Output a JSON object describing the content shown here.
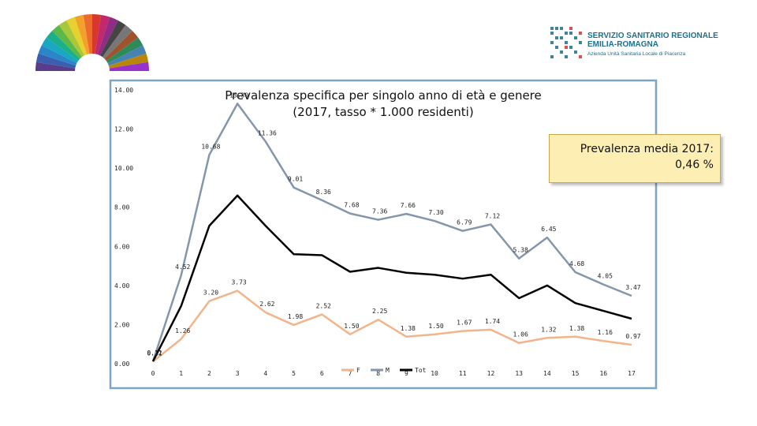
{
  "header": {
    "org_line1": "SERVIZIO SANITARIO REGIONALE",
    "org_line2": "EMILIA-ROMAGNA",
    "org_line3": "Azienda Unità Sanitaria Locale di Piacenza"
  },
  "note": {
    "line1": "Prevalenza media 2017:",
    "line2": "0,46 %"
  },
  "colors": {
    "F": "#f2b48a",
    "M": "#8496ab",
    "Tot": "#000000",
    "frame": "#7da3c8"
  },
  "chart_data": {
    "type": "line",
    "title_line1": "Prevalenza specifica per singolo anno di età e genere",
    "title_line2": "(2017, tasso * 1.000 residenti)",
    "categories": [
      "0",
      "1",
      "2",
      "3",
      "4",
      "5",
      "6",
      "7",
      "8",
      "9",
      "10",
      "11",
      "12",
      "13",
      "14",
      "15",
      "16",
      "17"
    ],
    "ylim": [
      0,
      14
    ],
    "yticks": [
      "0.00",
      "2.00",
      "4.00",
      "6.00",
      "8.00",
      "10.00",
      "12.00",
      "14.00"
    ],
    "series": [
      {
        "name": "F",
        "values": [
          0.11,
          1.26,
          3.2,
          3.73,
          2.62,
          1.98,
          2.52,
          1.5,
          2.25,
          1.38,
          1.5,
          1.67,
          1.74,
          1.06,
          1.32,
          1.38,
          1.16,
          0.97
        ],
        "labels": [
          "0.11",
          "1.26",
          "3.20",
          "3.73",
          "2.62",
          "1.98",
          "2.52",
          "1.50",
          "2.25",
          "1.38",
          "1.50",
          "1.67",
          "1.74",
          "1.06",
          "1.32",
          "1.38",
          "1.16",
          "0.97"
        ]
      },
      {
        "name": "M",
        "values": [
          0.12,
          4.52,
          10.68,
          13.3,
          11.36,
          9.01,
          8.36,
          7.68,
          7.36,
          7.66,
          7.3,
          6.79,
          7.12,
          5.38,
          6.45,
          4.68,
          4.05,
          3.47
        ],
        "labels": [
          "0.12",
          "4.52",
          "10.68",
          "13.30",
          "11.36",
          "9.01",
          "8.36",
          "7.68",
          "7.36",
          "7.66",
          "7.30",
          "6.79",
          "7.12",
          "5.38",
          "6.45",
          "4.68",
          "4.05",
          "3.47"
        ]
      },
      {
        "name": "Tot",
        "values": [
          0.12,
          2.95,
          7.05,
          8.6,
          7.05,
          5.6,
          5.55,
          4.7,
          4.9,
          4.65,
          4.55,
          4.35,
          4.55,
          3.35,
          4.0,
          3.1,
          2.7,
          2.3
        ],
        "labels": []
      }
    ]
  }
}
